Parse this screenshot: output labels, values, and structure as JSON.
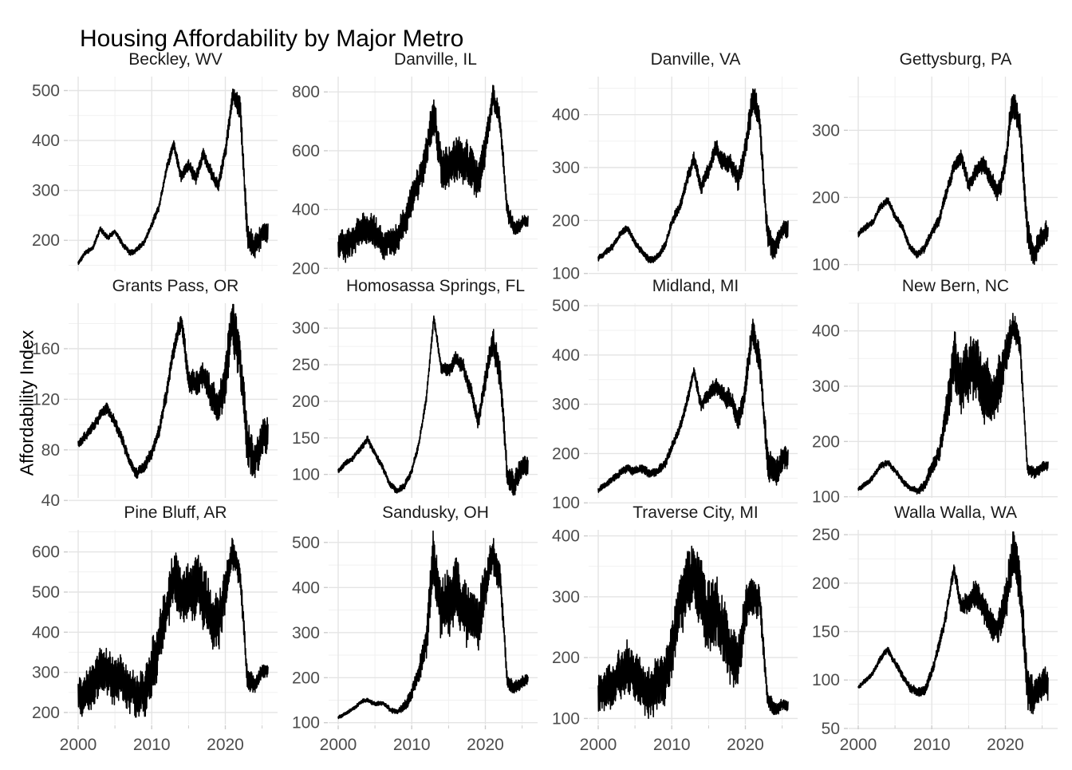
{
  "page": {
    "title": "Housing Affordability by Major Metro"
  },
  "chart_data": {
    "type": "line",
    "title": "Housing Affordability by Major Metro",
    "xlabel": "",
    "ylabel": "Affordability Index",
    "legend": "none",
    "grid": "on",
    "line_color": "#000000",
    "grid_major_color": "#e4e4e4",
    "grid_minor_color": "#f1f1f1",
    "tick_mark_color": "#cccccc",
    "tick_label_color": "#4d4d4d",
    "x_ticks": [
      2000,
      2010,
      2020
    ],
    "x_minor_ticks": [
      2005,
      2015,
      2025
    ],
    "x_domain": [
      1998.7,
      2027.1
    ],
    "x_data_start": 2000,
    "x_data_end": 2025.8,
    "anchor_year_start": 2000,
    "anchor_year_step": 1,
    "noise_years": [
      2000,
      2004,
      2008,
      2011,
      2013,
      2016,
      2019,
      2021,
      2023,
      2025
    ],
    "facets": [
      {
        "title": "Beckley, WV",
        "y_ticks": [
          200,
          300,
          400,
          500
        ],
        "ylim": [
          138,
          528
        ],
        "values": [
          155,
          175,
          185,
          225,
          205,
          218,
          192,
          175,
          182,
          196,
          230,
          268,
          340,
          392,
          330,
          352,
          322,
          372,
          338,
          310,
          376,
          488,
          470,
          205,
          180,
          210
        ],
        "noise_amp": [
          4,
          5,
          5,
          7,
          10,
          12,
          12,
          18,
          26,
          20
        ],
        "seed": 1
      },
      {
        "title": "Danville, IL",
        "y_ticks": [
          200,
          400,
          600,
          800
        ],
        "ylim": [
          190,
          852
        ],
        "values": [
          265,
          290,
          312,
          332,
          340,
          328,
          305,
          292,
          310,
          345,
          420,
          500,
          600,
          718,
          560,
          532,
          558,
          540,
          545,
          500,
          620,
          795,
          700,
          380,
          330,
          355
        ],
        "noise_amp": [
          45,
          50,
          45,
          50,
          60,
          70,
          60,
          35,
          28,
          18
        ],
        "seed": 2
      },
      {
        "title": "Danville, VA",
        "y_ticks": [
          100,
          200,
          300,
          400
        ],
        "ylim": [
          104,
          472
        ],
        "values": [
          128,
          140,
          152,
          176,
          184,
          160,
          140,
          123,
          130,
          150,
          195,
          222,
          270,
          318,
          266,
          295,
          338,
          300,
          310,
          276,
          340,
          428,
          380,
          172,
          150,
          182
        ],
        "noise_amp": [
          5,
          6,
          6,
          9,
          12,
          16,
          18,
          26,
          22,
          14
        ],
        "seed": 3
      },
      {
        "title": "Gettysburg, PA",
        "y_ticks": [
          100,
          200,
          300
        ],
        "ylim": [
          90,
          380
        ],
        "values": [
          145,
          155,
          165,
          186,
          196,
          172,
          155,
          126,
          114,
          124,
          150,
          166,
          210,
          246,
          260,
          216,
          240,
          252,
          226,
          206,
          250,
          342,
          300,
          140,
          120,
          147
        ],
        "noise_amp": [
          4,
          5,
          5,
          7,
          9,
          11,
          13,
          20,
          20,
          14
        ],
        "seed": 4
      },
      {
        "title": "Grants Pass, OR",
        "y_ticks": [
          40,
          80,
          120,
          160
        ],
        "ylim": [
          42,
          196
        ],
        "values": [
          84,
          92,
          98,
          108,
          112,
          101,
          88,
          70,
          60,
          66,
          78,
          95,
          125,
          160,
          183,
          136,
          130,
          140,
          124,
          110,
          135,
          175,
          150,
          80,
          66,
          86
        ],
        "noise_amp": [
          3,
          4,
          4,
          5,
          6,
          9,
          12,
          20,
          17,
          13
        ],
        "seed": 5
      },
      {
        "title": "Homosassa Springs, FL",
        "y_ticks": [
          100,
          150,
          200,
          250,
          300
        ],
        "ylim": [
          68,
          334
        ],
        "values": [
          105,
          115,
          122,
          136,
          148,
          128,
          110,
          88,
          78,
          85,
          105,
          145,
          205,
          315,
          245,
          240,
          258,
          245,
          215,
          172,
          230,
          286,
          240,
          100,
          90,
          116
        ],
        "noise_amp": [
          3,
          4,
          4,
          5,
          6,
          9,
          10,
          18,
          16,
          13
        ],
        "seed": 6
      },
      {
        "title": "Midland, MI",
        "y_ticks": [
          100,
          200,
          300,
          400,
          500
        ],
        "ylim": [
          110,
          505
        ],
        "values": [
          125,
          136,
          150,
          165,
          170,
          166,
          170,
          160,
          165,
          176,
          215,
          250,
          300,
          368,
          300,
          320,
          340,
          320,
          310,
          272,
          330,
          458,
          380,
          176,
          165,
          186
        ],
        "noise_amp": [
          5,
          7,
          8,
          9,
          10,
          15,
          20,
          26,
          30,
          24
        ],
        "seed": 7
      },
      {
        "title": "New Bern, NC",
        "y_ticks": [
          100,
          200,
          300,
          400
        ],
        "ylim": [
          98,
          450
        ],
        "values": [
          113,
          125,
          136,
          155,
          162,
          148,
          130,
          115,
          112,
          120,
          150,
          180,
          250,
          340,
          300,
          320,
          345,
          300,
          280,
          290,
          350,
          412,
          370,
          150,
          140,
          156
        ],
        "noise_amp": [
          4,
          5,
          5,
          15,
          45,
          55,
          45,
          25,
          10,
          8
        ],
        "seed": 8
      },
      {
        "title": "Pine Bluff, AR",
        "y_ticks": [
          200,
          300,
          400,
          500,
          600
        ],
        "ylim": [
          170,
          655
        ],
        "values": [
          235,
          255,
          270,
          292,
          300,
          290,
          280,
          260,
          245,
          260,
          300,
          360,
          440,
          520,
          470,
          480,
          510,
          490,
          460,
          420,
          500,
          598,
          540,
          280,
          265,
          305
        ],
        "noise_amp": [
          45,
          55,
          50,
          60,
          65,
          70,
          60,
          35,
          24,
          15
        ],
        "seed": 9
      },
      {
        "title": "Sandusky, OH",
        "y_ticks": [
          100,
          200,
          300,
          400,
          500
        ],
        "ylim": [
          96,
          528
        ],
        "values": [
          112,
          120,
          130,
          145,
          150,
          140,
          145,
          130,
          125,
          135,
          170,
          215,
          290,
          455,
          370,
          360,
          392,
          350,
          330,
          310,
          400,
          468,
          430,
          190,
          175,
          192
        ],
        "noise_amp": [
          3,
          4,
          5,
          20,
          55,
          65,
          55,
          40,
          15,
          12
        ],
        "seed": 10
      },
      {
        "title": "Traverse City, MI",
        "y_ticks": [
          100,
          200,
          300,
          400
        ],
        "ylim": [
          90,
          410
        ],
        "values": [
          135,
          145,
          155,
          172,
          180,
          165,
          150,
          145,
          150,
          165,
          220,
          265,
          310,
          352,
          290,
          270,
          265,
          245,
          215,
          200,
          265,
          308,
          288,
          130,
          112,
          122
        ],
        "noise_amp": [
          30,
          38,
          38,
          45,
          52,
          55,
          40,
          30,
          12,
          8
        ],
        "seed": 11
      },
      {
        "title": "Walla Walla, WA",
        "y_ticks": [
          50,
          100,
          150,
          200,
          250
        ],
        "ylim": [
          54,
          255
        ],
        "values": [
          92,
          100,
          108,
          122,
          132,
          118,
          105,
          92,
          86,
          90,
          110,
          135,
          170,
          214,
          175,
          180,
          192,
          175,
          160,
          150,
          185,
          228,
          200,
          95,
          80,
          96
        ],
        "noise_amp": [
          2,
          3,
          4,
          5,
          6,
          12,
          15,
          22,
          20,
          14
        ],
        "seed": 12
      }
    ]
  }
}
